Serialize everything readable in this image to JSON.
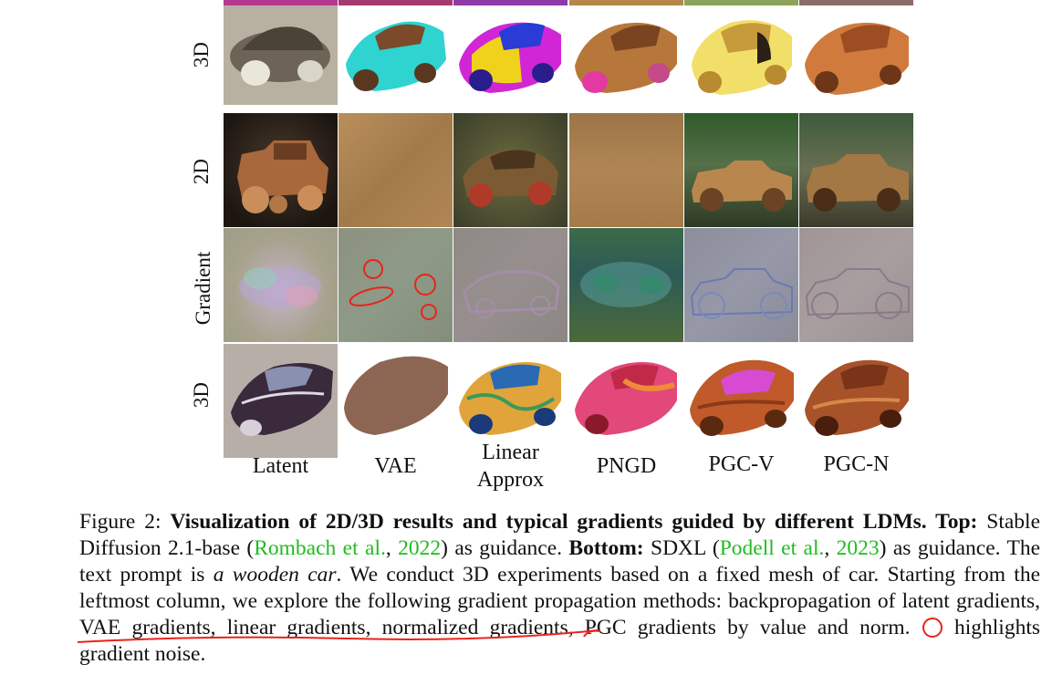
{
  "figure": {
    "row_labels": [
      "3D",
      "2D",
      "Gradient",
      "3D"
    ],
    "column_labels": [
      "Latent",
      "VAE",
      "Linear\nApprox",
      "PNGD",
      "PGC-V",
      "PGC-N"
    ],
    "colors": {
      "annotation_red": "#e8241c",
      "citation_green": "#22bb22"
    }
  },
  "caption": {
    "prefix": "Figure 2: ",
    "bold_title": "Visualization of 2D/3D results and typical gradients guided by different LDMs. Top:",
    "text1": " Stable Diffusion 2.1-base (",
    "cite1_authors": "Rombach et al.",
    "cite1_sep": ", ",
    "cite1_year": "2022",
    "text2": ") as guidance. ",
    "bold_bottom": "Bottom:",
    "text3": " SDXL (",
    "cite2_authors": "Podell et al.",
    "cite2_sep": ", ",
    "cite2_year": "2023",
    "text4": ") as guidance.  The text prompt is ",
    "prompt_italic": "a wooden car",
    "text5": ".  We conduct 3D experiments based on a fixed mesh of car. Starting from the leftmost column, we explore the following gradient propagation methods: backpropagation of latent gradients, VAE gradients, linear gradients, normalized gradients, PGC gradients by value and norm. ",
    "text6": " highlights gradient noise."
  }
}
